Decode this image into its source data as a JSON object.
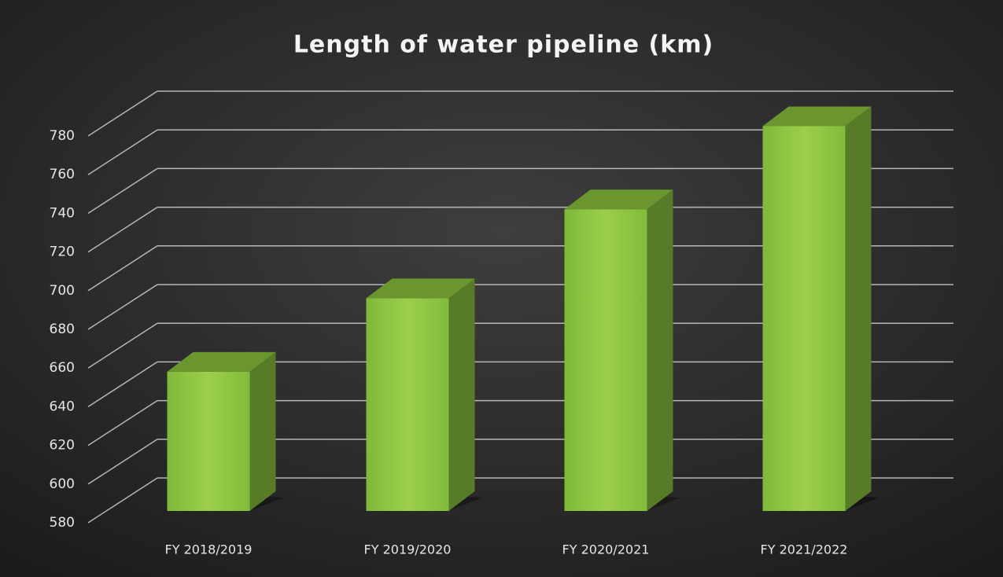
{
  "chart_data": {
    "type": "bar3d",
    "title": "Length of water pipeline (km)",
    "categories": [
      "FY 2018/2019",
      "FY 2019/2020",
      "FY 2020/2021",
      "FY 2021/2022"
    ],
    "values": [
      652,
      690,
      736,
      779
    ],
    "color": "#8dc63f",
    "ylim": [
      580,
      780
    ],
    "yticks": [
      580,
      600,
      620,
      640,
      660,
      680,
      700,
      720,
      740,
      760,
      780
    ],
    "grid": true
  }
}
